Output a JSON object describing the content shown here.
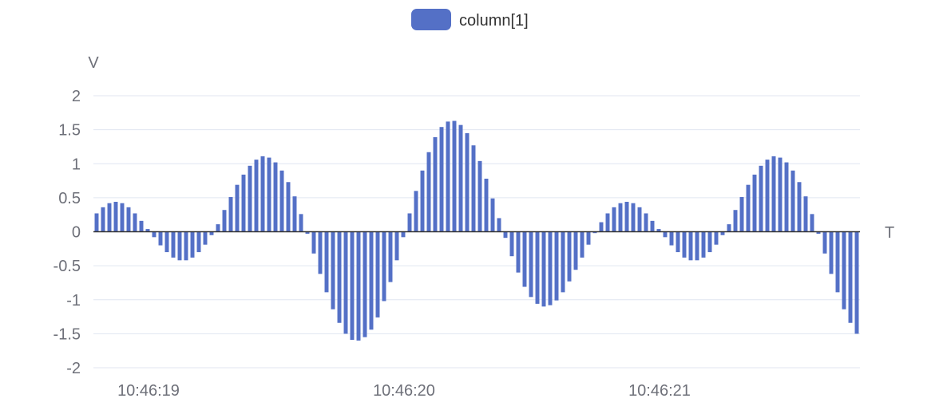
{
  "chart_data": {
    "type": "bar",
    "legend": {
      "position": "top-center",
      "items": [
        "column[1]"
      ]
    },
    "xlabel": "T",
    "ylabel": "V",
    "ylim": [
      -2,
      2
    ],
    "yticks": [
      "-2",
      "-1.5",
      "-1",
      "-0.5",
      "0",
      "0.5",
      "1",
      "1.5",
      "2"
    ],
    "ytick_values": [
      -2,
      -1.5,
      -1,
      -0.5,
      0,
      0.5,
      1,
      1.5,
      2
    ],
    "x_tick_labels": [
      "10:46:19",
      "10:46:20",
      "10:46:21"
    ],
    "grid": true,
    "series": [
      {
        "name": "column[1]",
        "color": "#5470c6",
        "values": [
          0.27,
          0.36,
          0.42,
          0.44,
          0.42,
          0.36,
          0.27,
          0.16,
          0.04,
          -0.08,
          -0.2,
          -0.3,
          -0.38,
          -0.42,
          -0.42,
          -0.38,
          -0.3,
          -0.19,
          -0.05,
          0.11,
          0.32,
          0.51,
          0.69,
          0.84,
          0.97,
          1.06,
          1.11,
          1.09,
          1.02,
          0.9,
          0.73,
          0.52,
          0.26,
          -0.03,
          -0.32,
          -0.62,
          -0.89,
          -1.14,
          -1.34,
          -1.5,
          -1.59,
          -1.6,
          -1.55,
          -1.44,
          -1.26,
          -1.02,
          -0.74,
          -0.42,
          -0.08,
          0.27,
          0.6,
          0.9,
          1.17,
          1.39,
          1.54,
          1.62,
          1.63,
          1.57,
          1.45,
          1.27,
          1.04,
          0.78,
          0.49,
          0.2,
          -0.09,
          -0.36,
          -0.6,
          -0.81,
          -0.96,
          -1.06,
          -1.1,
          -1.08,
          -1.01,
          -0.89,
          -0.73,
          -0.56,
          -0.38,
          -0.19,
          -0.02,
          0.14,
          0.27,
          0.36,
          0.42,
          0.44,
          0.42,
          0.36,
          0.27,
          0.16,
          0.04,
          -0.08,
          -0.2,
          -0.3,
          -0.38,
          -0.42,
          -0.42,
          -0.38,
          -0.3,
          -0.19,
          -0.05,
          0.11,
          0.32,
          0.51,
          0.69,
          0.84,
          0.97,
          1.06,
          1.11,
          1.09,
          1.02,
          0.9,
          0.73,
          0.52,
          0.26,
          -0.03,
          -0.32,
          -0.62,
          -0.89,
          -1.14,
          -1.34,
          -1.5
        ]
      }
    ]
  }
}
